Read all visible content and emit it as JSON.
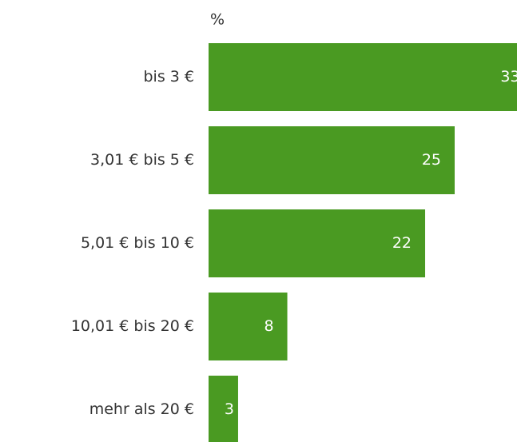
{
  "chart_data": {
    "type": "bar",
    "orientation": "horizontal",
    "unit_label": "%",
    "categories": [
      "bis 3 €",
      "3,01 € bis 5 €",
      "5,01 € bis 10 €",
      "10,01 € bis 20 €",
      "mehr als 20 €"
    ],
    "values": [
      33,
      25,
      22,
      8,
      3
    ],
    "color": "#4a9a22"
  }
}
